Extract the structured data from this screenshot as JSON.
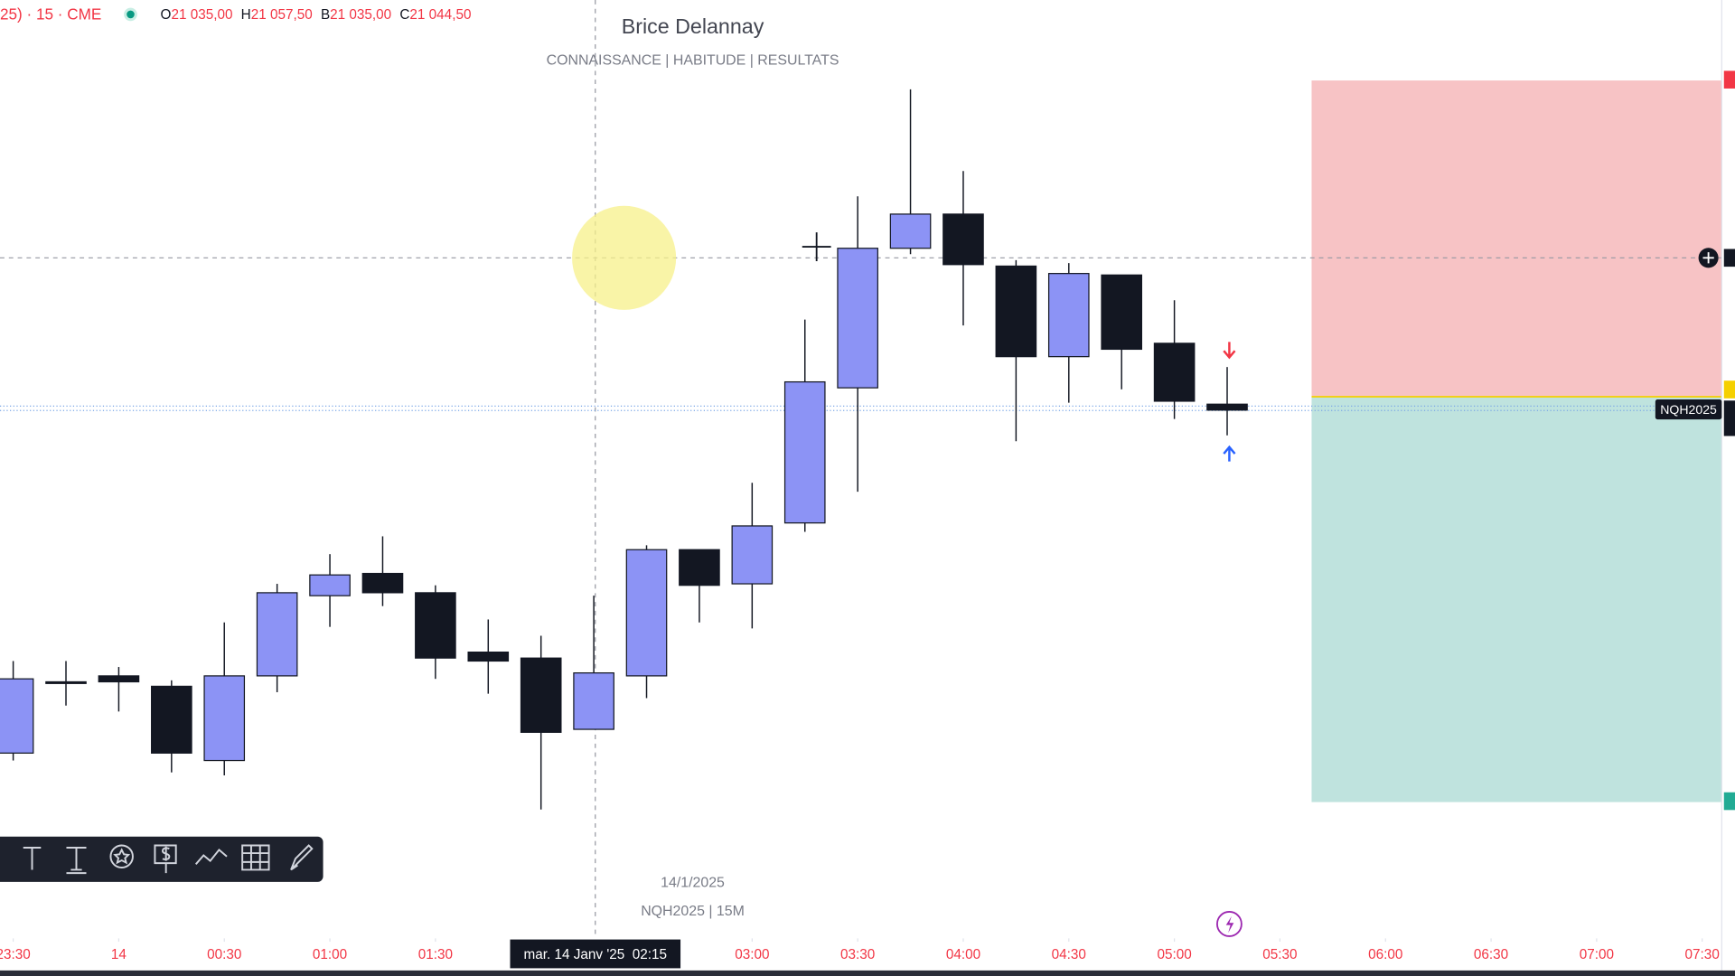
{
  "header": {
    "symbol": "25) · 15 · CME",
    "ohlc": [
      {
        "label": "O",
        "value": "21 035,00"
      },
      {
        "label": "H",
        "value": "21 057,50"
      },
      {
        "label": "B",
        "value": "21 035,00"
      },
      {
        "label": "C",
        "value": "21 044,50"
      }
    ]
  },
  "title": "Brice Delannay",
  "subtitle": [
    "CONNAISSANCE",
    "|",
    "HABITUDE",
    "|",
    "RESULTATS"
  ],
  "watermark": {
    "date": "14/1/2025",
    "symbol": "NQH2025 | 15M"
  },
  "symbol_tag": "NQH2025",
  "crosshair_label": "mar. 14 Janv '25  02:15",
  "chart_data": {
    "type": "candlestick",
    "open": [
      21031,
      21043,
      21044,
      21042.25,
      21029.75,
      21044,
      21057.5,
      21061.25,
      21058,
      21048,
      21047,
      21035,
      21044,
      21065.25,
      21059.5,
      21069.75,
      21092.5,
      21116,
      21121.75,
      21113,
      21097.75,
      21111.5,
      21100,
      21089.75
    ],
    "high": [
      21046.5,
      21046.5,
      21045.5,
      21043.25,
      21053,
      21059.5,
      21064.5,
      21067.5,
      21059.25,
      21053.5,
      21050.75,
      21057.5,
      21066,
      21065.25,
      21076.5,
      21104,
      21124.75,
      21142.75,
      21129,
      21114,
      21113.5,
      21111.5,
      21107.25,
      21096
    ],
    "low": [
      21029.75,
      21039,
      21038,
      21027.75,
      21027.25,
      21041.25,
      21052.25,
      21055.75,
      21043.5,
      21041,
      21021.5,
      21035,
      21040.25,
      21053,
      21052,
      21068.25,
      21075,
      21115,
      21103,
      21083.5,
      21090,
      21092.25,
      21087.25,
      21084.5
    ],
    "close": [
      21043.5,
      21043,
      21043,
      21031,
      21044,
      21058,
      21061,
      21058,
      21047,
      21046.5,
      21034.5,
      21044.5,
      21065.25,
      21059.25,
      21069.25,
      21093.5,
      21116,
      21121.75,
      21113.25,
      21097.75,
      21111.75,
      21099,
      21090.25,
      21088.75
    ],
    "up_color": "#8c93f5",
    "down_color": "#131722",
    "position": {
      "stop": 21144.25,
      "entry": 21091,
      "target": 21022.75,
      "stop_color": "#f7c3c5",
      "target_color": "#bfe3de"
    },
    "xlim": [
      -0.25,
      32.37
    ],
    "ylim": [
      20994.4,
      21157.8
    ],
    "xticks": [
      {
        "value": 0,
        "label": "23:30"
      },
      {
        "value": 2,
        "label": "14"
      },
      {
        "value": 4,
        "label": "00:30"
      },
      {
        "value": 6,
        "label": "01:00"
      },
      {
        "value": 8,
        "label": "01:30"
      },
      {
        "value": 14,
        "label": "03:00"
      },
      {
        "value": 16,
        "label": "03:30"
      },
      {
        "value": 18,
        "label": "04:00"
      },
      {
        "value": 20,
        "label": "04:30"
      },
      {
        "value": 22,
        "label": "05:00"
      },
      {
        "value": 24,
        "label": "05:30"
      },
      {
        "value": 26,
        "label": "06:00"
      },
      {
        "value": 28,
        "label": "06:30"
      },
      {
        "value": 30,
        "label": "07:00"
      },
      {
        "value": 32,
        "label": "07:30"
      }
    ]
  }
}
